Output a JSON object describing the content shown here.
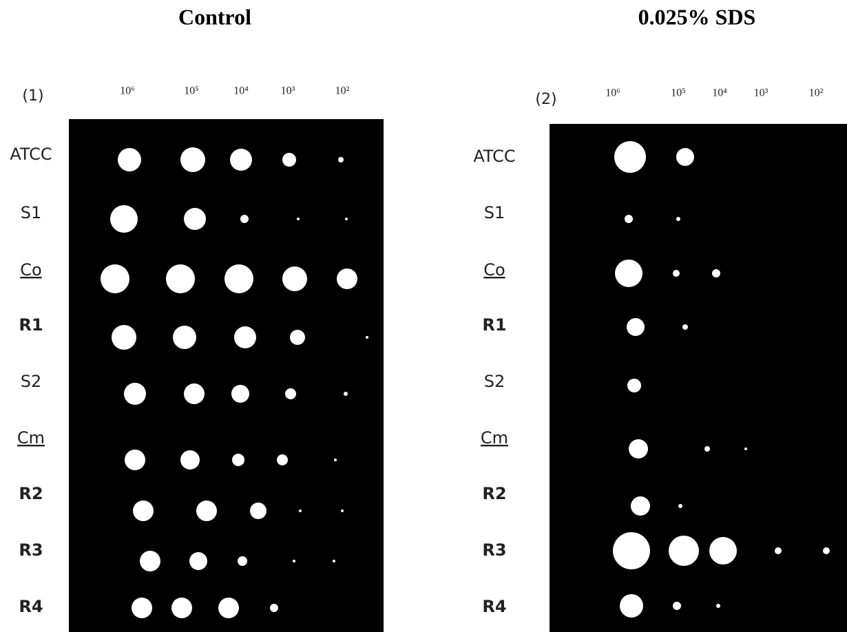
{
  "panels": [
    {
      "title": "Control",
      "label": "(1)",
      "dilutions": [
        "10⁶",
        "10⁵",
        "10⁴",
        "10³",
        "10²"
      ],
      "rows": [
        "ATCC",
        "S1",
        "Co",
        "R1",
        "S2",
        "Cm",
        "R2",
        "R3",
        "R4"
      ]
    },
    {
      "title": "0.025% SDS",
      "label": "(2)",
      "dilutions": [
        "10⁶",
        "10⁵",
        "10⁴",
        "10³",
        "10²"
      ],
      "rows": [
        "ATCC",
        "S1",
        "Co",
        "R1",
        "S2",
        "Cm",
        "R2",
        "R3",
        "R4"
      ]
    }
  ]
}
